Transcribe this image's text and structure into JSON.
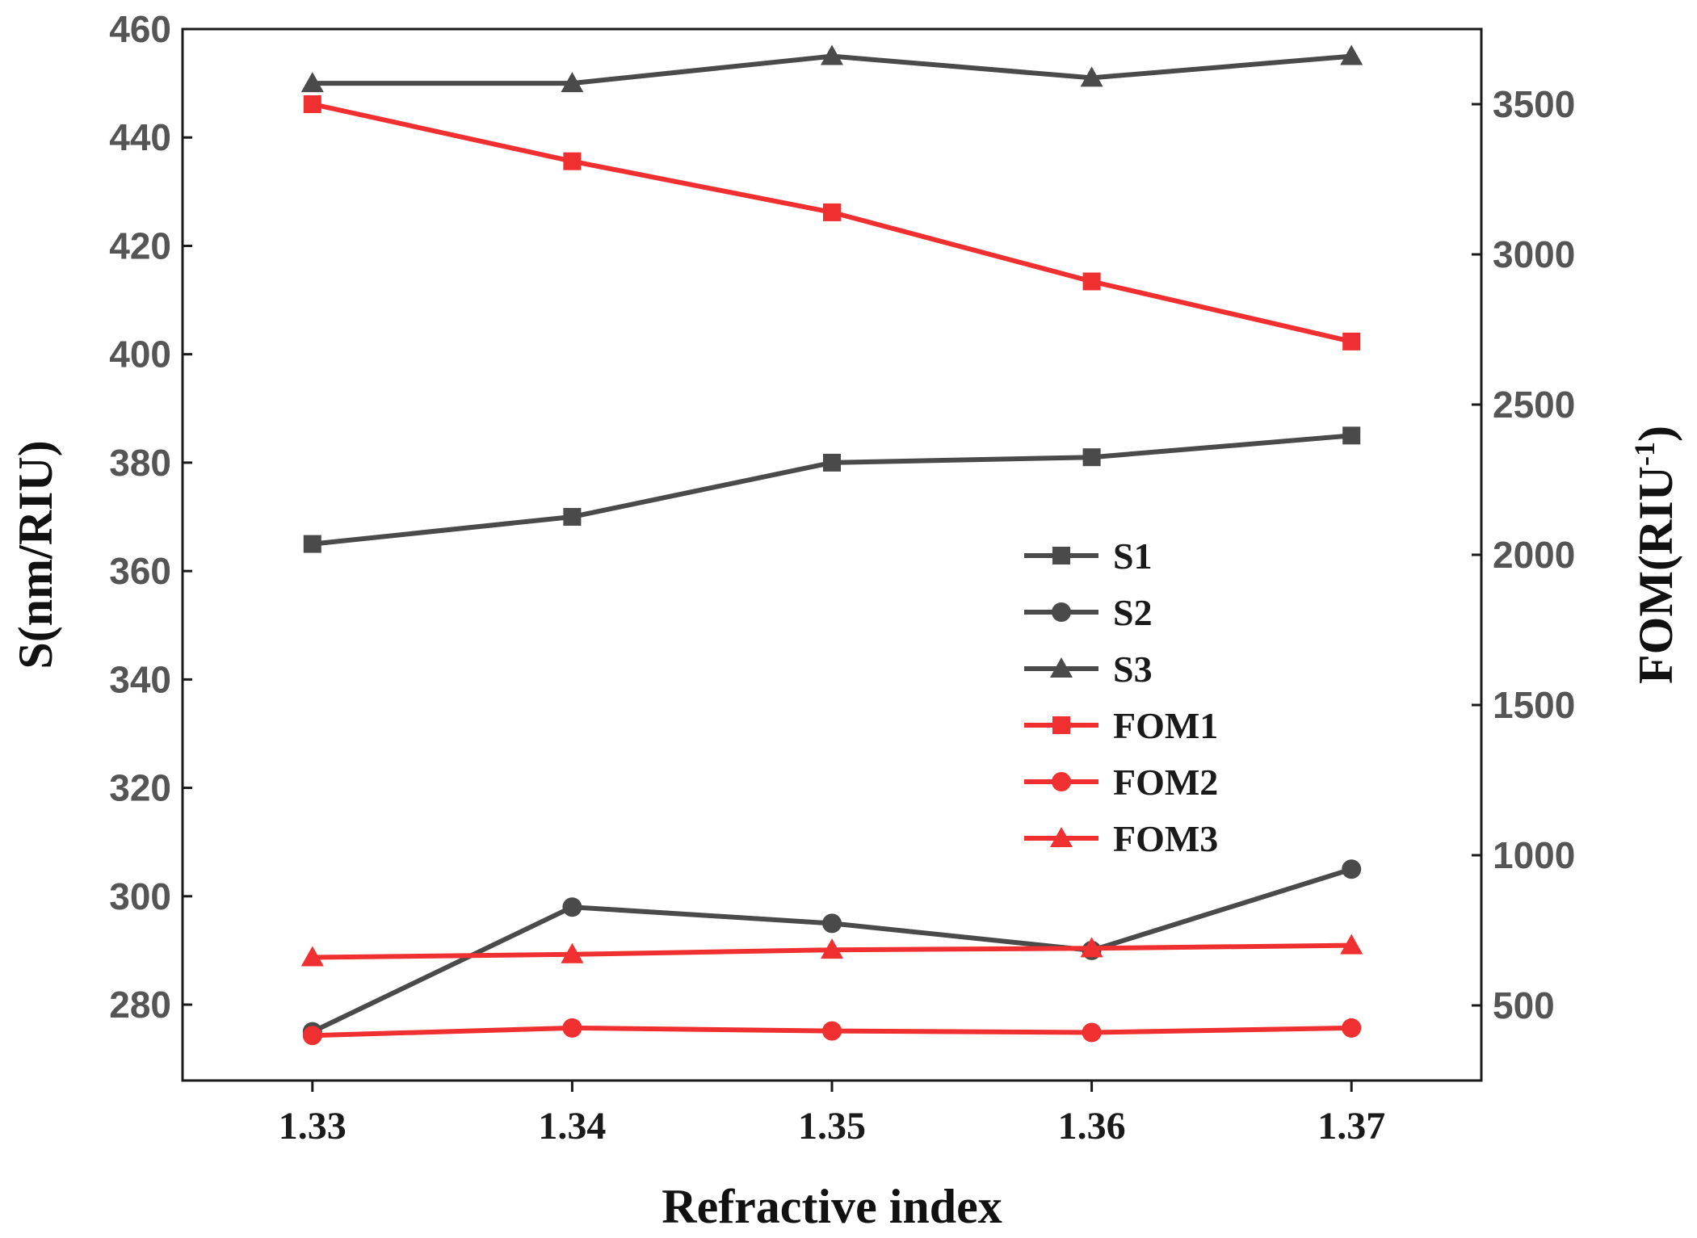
{
  "chart_data": {
    "type": "line",
    "x": [
      1.33,
      1.34,
      1.35,
      1.36,
      1.37
    ],
    "x_tick_labels": [
      "1.33",
      "1.34",
      "1.35",
      "1.36",
      "1.37"
    ],
    "xlabel": "Refractive index",
    "xlim": [
      1.325,
      1.375
    ],
    "ylabel_left": "S(nm/RIU)",
    "ylim_left": [
      266,
      460
    ],
    "yticks_left": [
      280,
      300,
      320,
      340,
      360,
      380,
      400,
      420,
      440,
      460
    ],
    "ylabel_right": "FOM(RIU",
    "ylabel_right_sup": "-1",
    "ylabel_right_close": ")",
    "ylim_right": [
      250,
      3750
    ],
    "yticks_right": [
      500,
      1000,
      1500,
      2000,
      2500,
      3000,
      3500
    ],
    "legend_position": "center-right",
    "series": [
      {
        "name": "S1",
        "axis": "left",
        "marker": "square",
        "color": "#4a4a4a",
        "values": [
          365,
          370,
          380,
          381,
          385
        ]
      },
      {
        "name": "S2",
        "axis": "left",
        "marker": "circle",
        "color": "#4a4a4a",
        "values": [
          275,
          298,
          295,
          290,
          305
        ]
      },
      {
        "name": "S3",
        "axis": "left",
        "marker": "triangle",
        "color": "#4a4a4a",
        "values": [
          450,
          450,
          455,
          451,
          455
        ]
      },
      {
        "name": "FOM1",
        "axis": "right",
        "marker": "square",
        "color": "#f03030",
        "values": [
          3500,
          3310,
          3140,
          2910,
          2710
        ]
      },
      {
        "name": "FOM2",
        "axis": "right",
        "marker": "circle",
        "color": "#f03030",
        "values": [
          400,
          425,
          415,
          410,
          425
        ]
      },
      {
        "name": "FOM3",
        "axis": "right",
        "marker": "triangle",
        "color": "#f03030",
        "values": [
          660,
          670,
          685,
          690,
          700
        ]
      }
    ]
  }
}
